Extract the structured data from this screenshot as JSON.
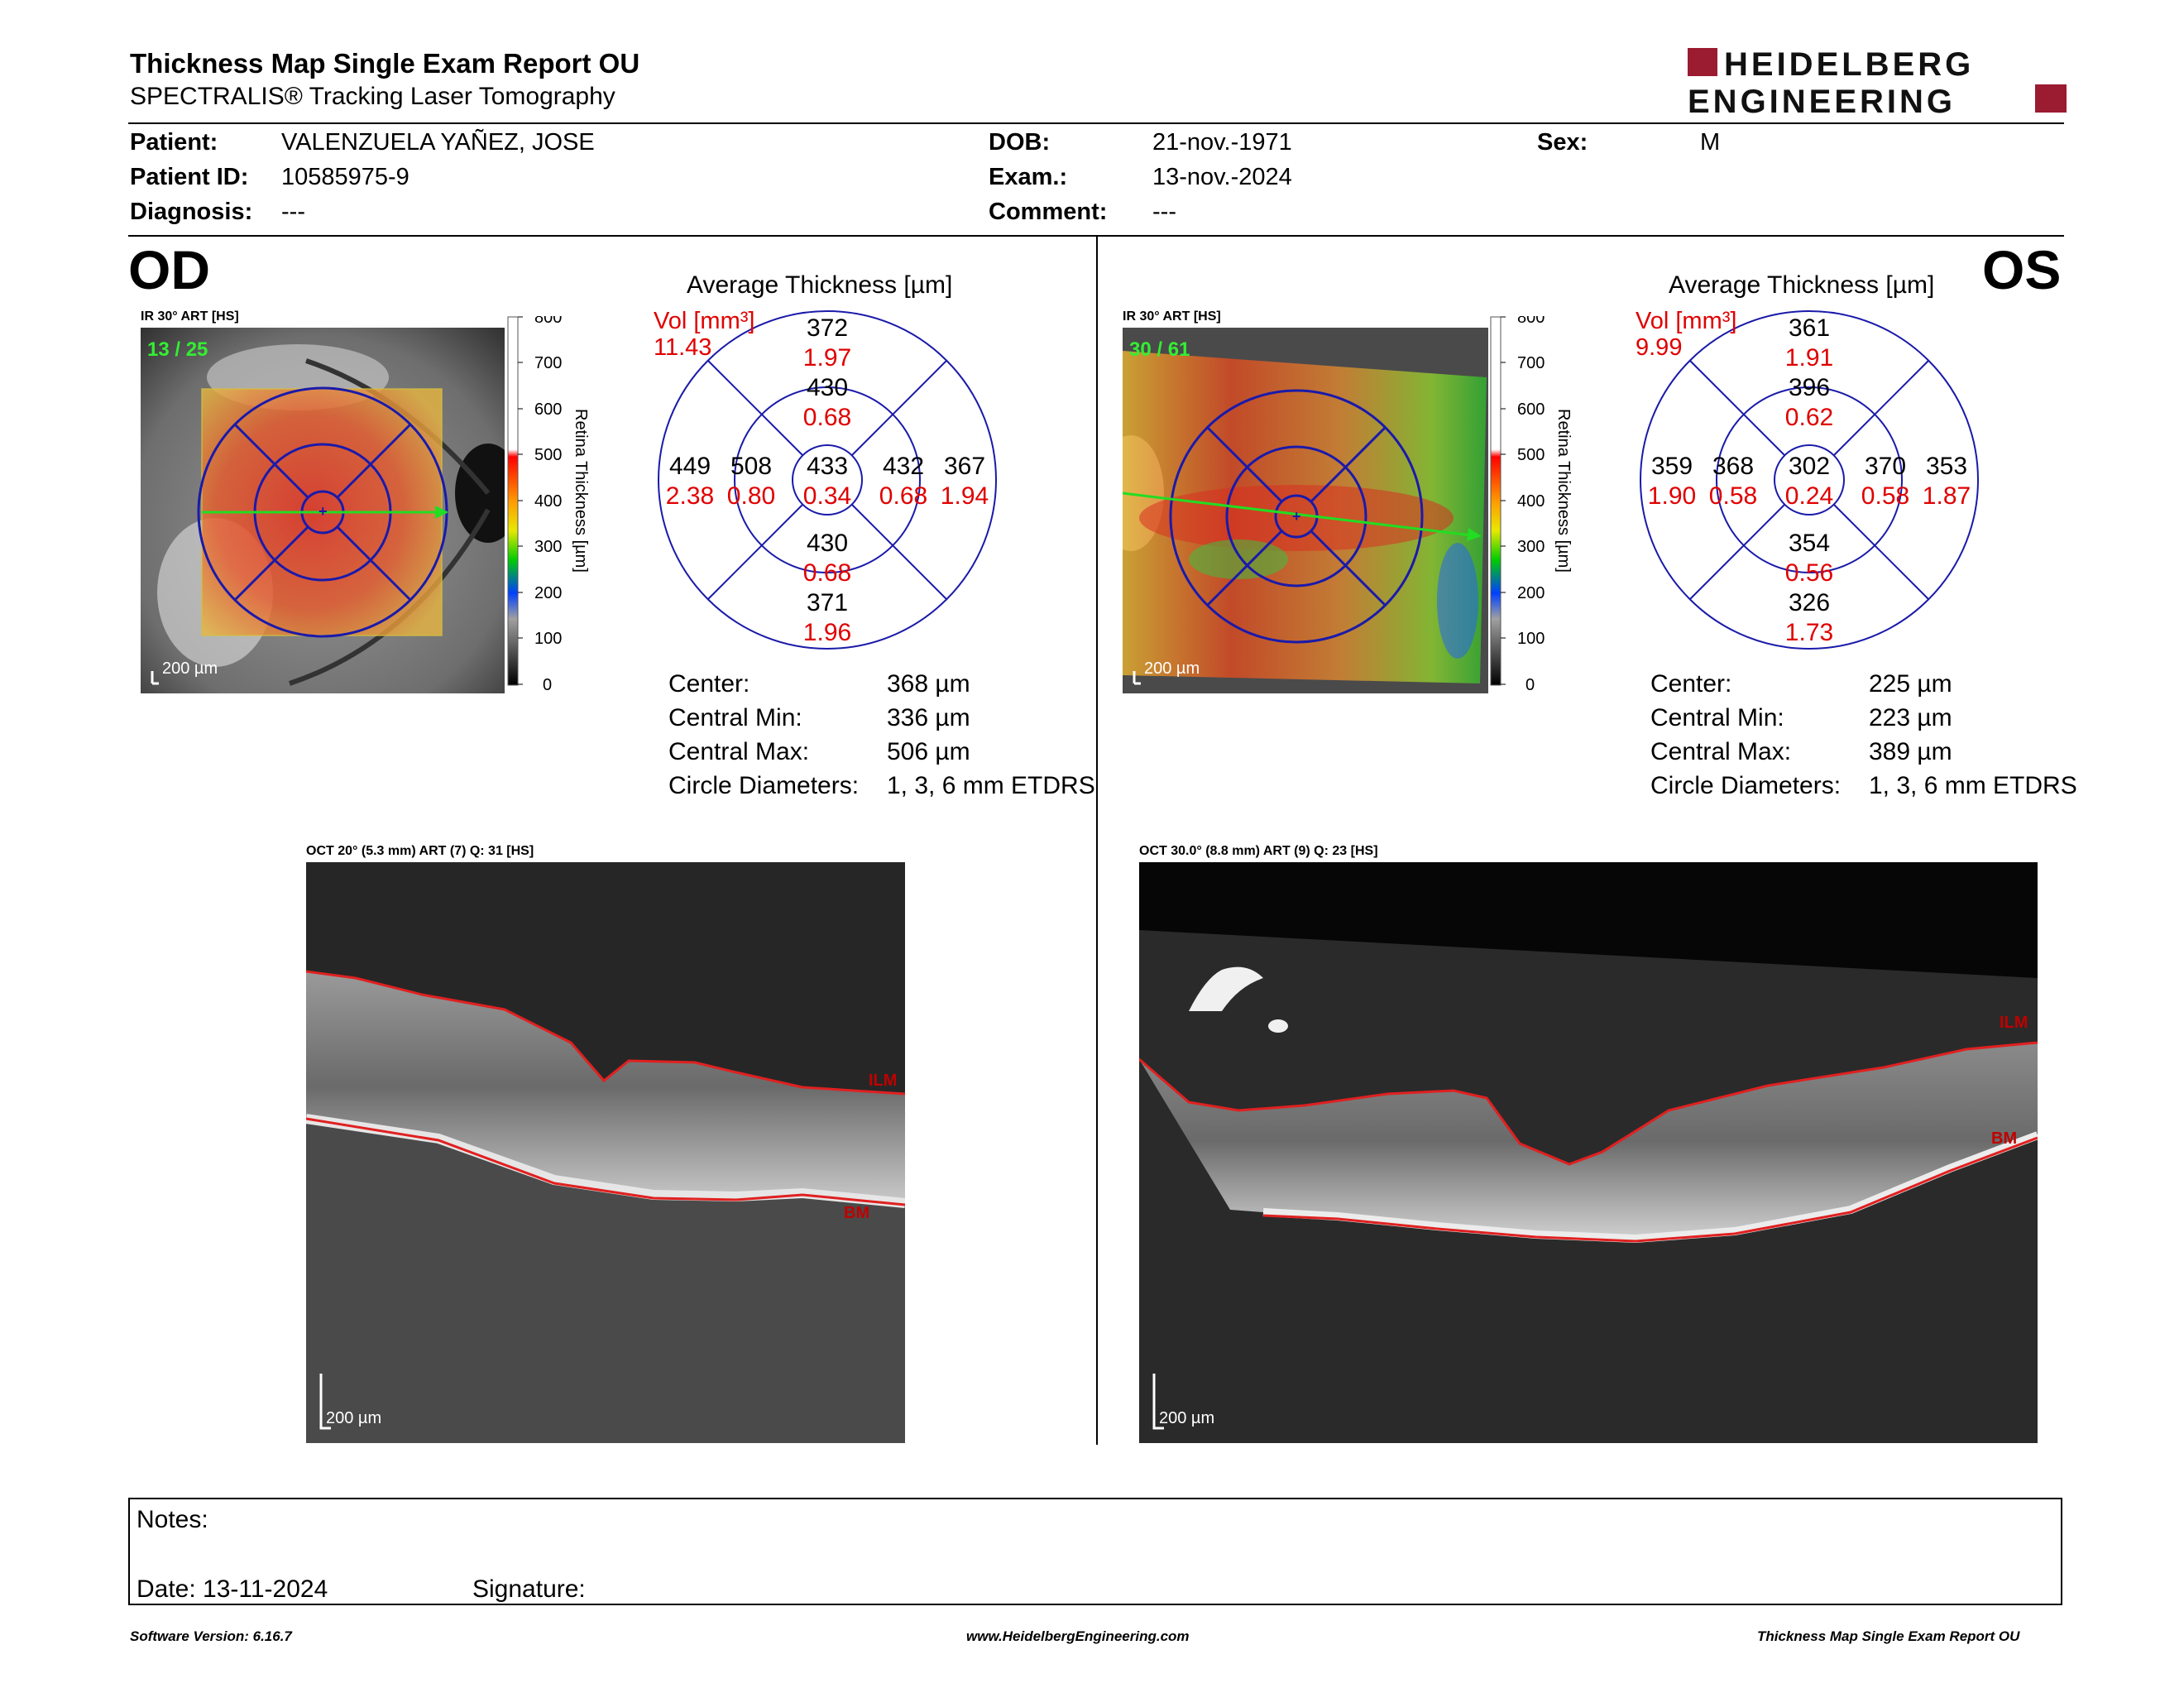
{
  "header": {
    "title": "Thickness Map Single Exam Report OU",
    "subtitle": "SPECTRALIS® Tracking Laser Tomography",
    "logo_top": "HEIDELBERG",
    "logo_bottom": "ENGINEERING",
    "brand_color": "#9b1b30"
  },
  "patient": {
    "patient_label": "Patient:",
    "patient_value": "VALENZUELA YAÑEZ, JOSE",
    "id_label": "Patient ID:",
    "id_value": "10585975-9",
    "diagnosis_label": "Diagnosis:",
    "diagnosis_value": "---",
    "dob_label": "DOB:",
    "dob_value": "21-nov.-1971",
    "exam_label": "Exam.:",
    "exam_value": "13-nov.-2024",
    "comment_label": "Comment:",
    "comment_value": "---",
    "sex_label": "Sex:",
    "sex_value": "M"
  },
  "od": {
    "eye": "OD",
    "ir_label": "IR 30° ART [HS]",
    "frame": "13 / 25",
    "scale": "200 µm",
    "avg_title": "Average Thickness [µm]",
    "vol_label": "Vol [mm³]",
    "vol_value": "11.43",
    "etdrs": {
      "center": "433",
      "center_vol": "0.34",
      "inner_top": "430",
      "inner_top_vol": "0.68",
      "inner_bottom": "430",
      "inner_bottom_vol": "0.68",
      "inner_left": "508",
      "inner_left_vol": "0.80",
      "inner_right": "432",
      "inner_right_vol": "0.68",
      "outer_top": "372",
      "outer_top_vol": "1.97",
      "outer_bottom": "371",
      "outer_bottom_vol": "1.96",
      "outer_left": "449",
      "outer_left_vol": "2.38",
      "outer_right": "367",
      "outer_right_vol": "1.94"
    },
    "stats": {
      "center_label": "Center:",
      "center_value": "368 µm",
      "min_label": "Central Min:",
      "min_value": "336 µm",
      "max_label": "Central Max:",
      "max_value": "506 µm",
      "diam_label": "Circle Diameters:",
      "diam_value": "1, 3, 6 mm ETDRS"
    },
    "oct_label": "OCT 20° (5.3 mm) ART (7) Q: 31 [HS]",
    "oct_scale": "200 µm",
    "ilm": "ILM",
    "bm": "BM"
  },
  "os": {
    "eye": "OS",
    "ir_label": "IR 30° ART [HS]",
    "frame": "30 / 61",
    "scale": "200 µm",
    "avg_title": "Average Thickness [µm]",
    "vol_label": "Vol [mm³]",
    "vol_value": "9.99",
    "etdrs": {
      "center": "302",
      "center_vol": "0.24",
      "inner_top": "396",
      "inner_top_vol": "0.62",
      "inner_bottom": "354",
      "inner_bottom_vol": "0.56",
      "inner_left": "368",
      "inner_left_vol": "0.58",
      "inner_right": "370",
      "inner_right_vol": "0.58",
      "outer_top": "361",
      "outer_top_vol": "1.91",
      "outer_bottom": "326",
      "outer_bottom_vol": "1.73",
      "outer_left": "359",
      "outer_left_vol": "1.90",
      "outer_right": "353",
      "outer_right_vol": "1.87"
    },
    "stats": {
      "center_label": "Center:",
      "center_value": "225 µm",
      "min_label": "Central Min:",
      "min_value": "223 µm",
      "max_label": "Central Max:",
      "max_value": "389 µm",
      "diam_label": "Circle Diameters:",
      "diam_value": "1, 3, 6 mm ETDRS"
    },
    "oct_label": "OCT 30.0° (8.8 mm) ART (9) Q: 23 [HS]",
    "oct_scale": "200 µm",
    "ilm": "ILM",
    "bm": "BM"
  },
  "colorbar": {
    "ticks": [
      "800",
      "700",
      "600",
      "500",
      "400",
      "300",
      "200",
      "100",
      "0"
    ],
    "title": "Retina Thickness [µm]"
  },
  "notes": {
    "notes_label": "Notes:",
    "date_label": "Date: 13-11-2024",
    "signature_label": "Signature:"
  },
  "footer": {
    "software": "Software Version: 6.16.7",
    "website": "www.HeidelbergEngineering.com",
    "report": "Thickness Map Single Exam Report OU"
  }
}
